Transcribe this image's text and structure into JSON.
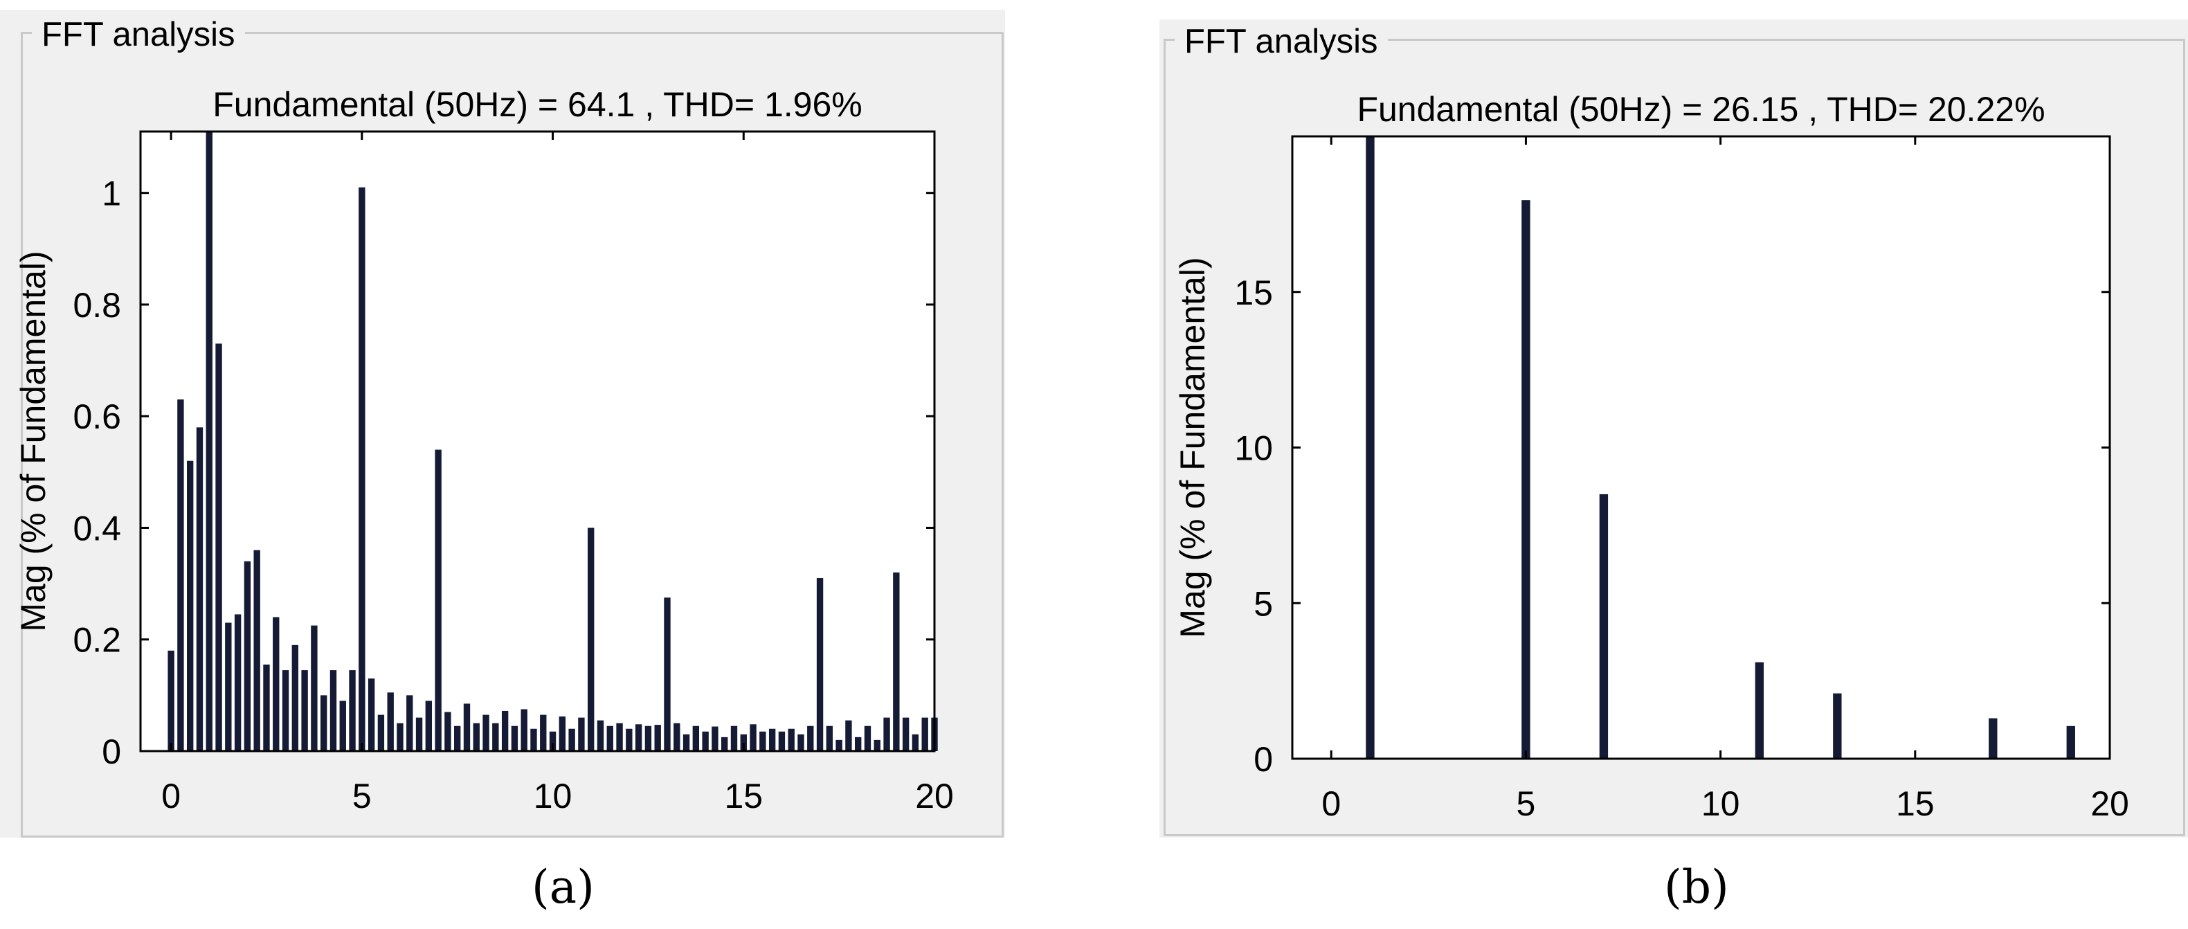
{
  "colors": {
    "bar": "#151a35",
    "panel_bg": "#f0f0f0",
    "legend_title": "#0f0d99",
    "frame": "#c9c9c9",
    "axis": "#000000"
  },
  "chart_data": [
    {
      "type": "bar",
      "legend_title": "FFT analysis",
      "title": "Fundamental (50Hz) = 64.1 , THD= 1.96%",
      "xlabel": "",
      "ylabel": "Mag (% of Fundamental)",
      "xlim": [
        -0.8,
        20
      ],
      "ylim": [
        0,
        1.11
      ],
      "xticks": [
        0,
        5,
        10,
        15,
        20
      ],
      "yticks": [
        0,
        0.2,
        0.4,
        0.6,
        0.8,
        1
      ],
      "ytick_labels": [
        "0",
        "0.2",
        "0.4",
        "0.6",
        "0.8",
        "1"
      ],
      "bar_width": 0.17,
      "x": [
        0,
        0.25,
        0.5,
        0.75,
        1,
        1.25,
        1.5,
        1.75,
        2,
        2.25,
        2.5,
        2.75,
        3,
        3.25,
        3.5,
        3.75,
        4,
        4.25,
        4.5,
        4.75,
        5,
        5.25,
        5.5,
        5.75,
        6,
        6.25,
        6.5,
        6.75,
        7,
        7.25,
        7.5,
        7.75,
        8,
        8.25,
        8.5,
        8.75,
        9,
        9.25,
        9.5,
        9.75,
        10,
        10.25,
        10.5,
        10.75,
        11,
        11.25,
        11.5,
        11.75,
        12,
        12.25,
        12.5,
        12.75,
        13,
        13.25,
        13.5,
        13.75,
        14,
        14.25,
        14.5,
        14.75,
        15,
        15.25,
        15.5,
        15.75,
        16,
        16.25,
        16.5,
        16.75,
        17,
        17.25,
        17.5,
        17.75,
        18,
        18.25,
        18.5,
        18.75,
        19,
        19.25,
        19.5,
        19.75,
        20
      ],
      "values": [
        0.18,
        0.63,
        0.52,
        0.58,
        1.11,
        0.73,
        0.23,
        0.245,
        0.34,
        0.36,
        0.155,
        0.24,
        0.145,
        0.19,
        0.145,
        0.225,
        0.1,
        0.145,
        0.09,
        0.145,
        1.01,
        0.13,
        0.065,
        0.105,
        0.05,
        0.1,
        0.06,
        0.09,
        0.54,
        0.07,
        0.045,
        0.085,
        0.05,
        0.065,
        0.05,
        0.072,
        0.045,
        0.075,
        0.04,
        0.065,
        0.035,
        0.062,
        0.04,
        0.06,
        0.4,
        0.055,
        0.045,
        0.05,
        0.04,
        0.048,
        0.045,
        0.047,
        0.275,
        0.05,
        0.03,
        0.045,
        0.035,
        0.044,
        0.025,
        0.045,
        0.03,
        0.048,
        0.035,
        0.04,
        0.035,
        0.04,
        0.03,
        0.045,
        0.31,
        0.045,
        0.02,
        0.055,
        0.025,
        0.045,
        0.02,
        0.06,
        0.32,
        0.06,
        0.03,
        0.06,
        0.06
      ]
    },
    {
      "type": "bar",
      "legend_title": "FFT analysis",
      "title": "Fundamental (50Hz) = 26.15 , THD= 20.22%",
      "xlabel": "",
      "ylabel": "Mag (% of Fundamental)",
      "xlim": [
        -1,
        20
      ],
      "ylim": [
        0,
        20
      ],
      "xticks": [
        0,
        5,
        10,
        15,
        20
      ],
      "yticks": [
        0,
        5,
        10,
        15
      ],
      "ytick_labels": [
        "0",
        "5",
        "10",
        "15"
      ],
      "bar_width": 0.22,
      "x": [
        1,
        5,
        7,
        11,
        13,
        17,
        19
      ],
      "values": [
        20,
        17.95,
        8.5,
        3.1,
        2.1,
        1.3,
        1.05
      ]
    }
  ],
  "sublabels": {
    "a": "(a)",
    "b": "(b)"
  }
}
